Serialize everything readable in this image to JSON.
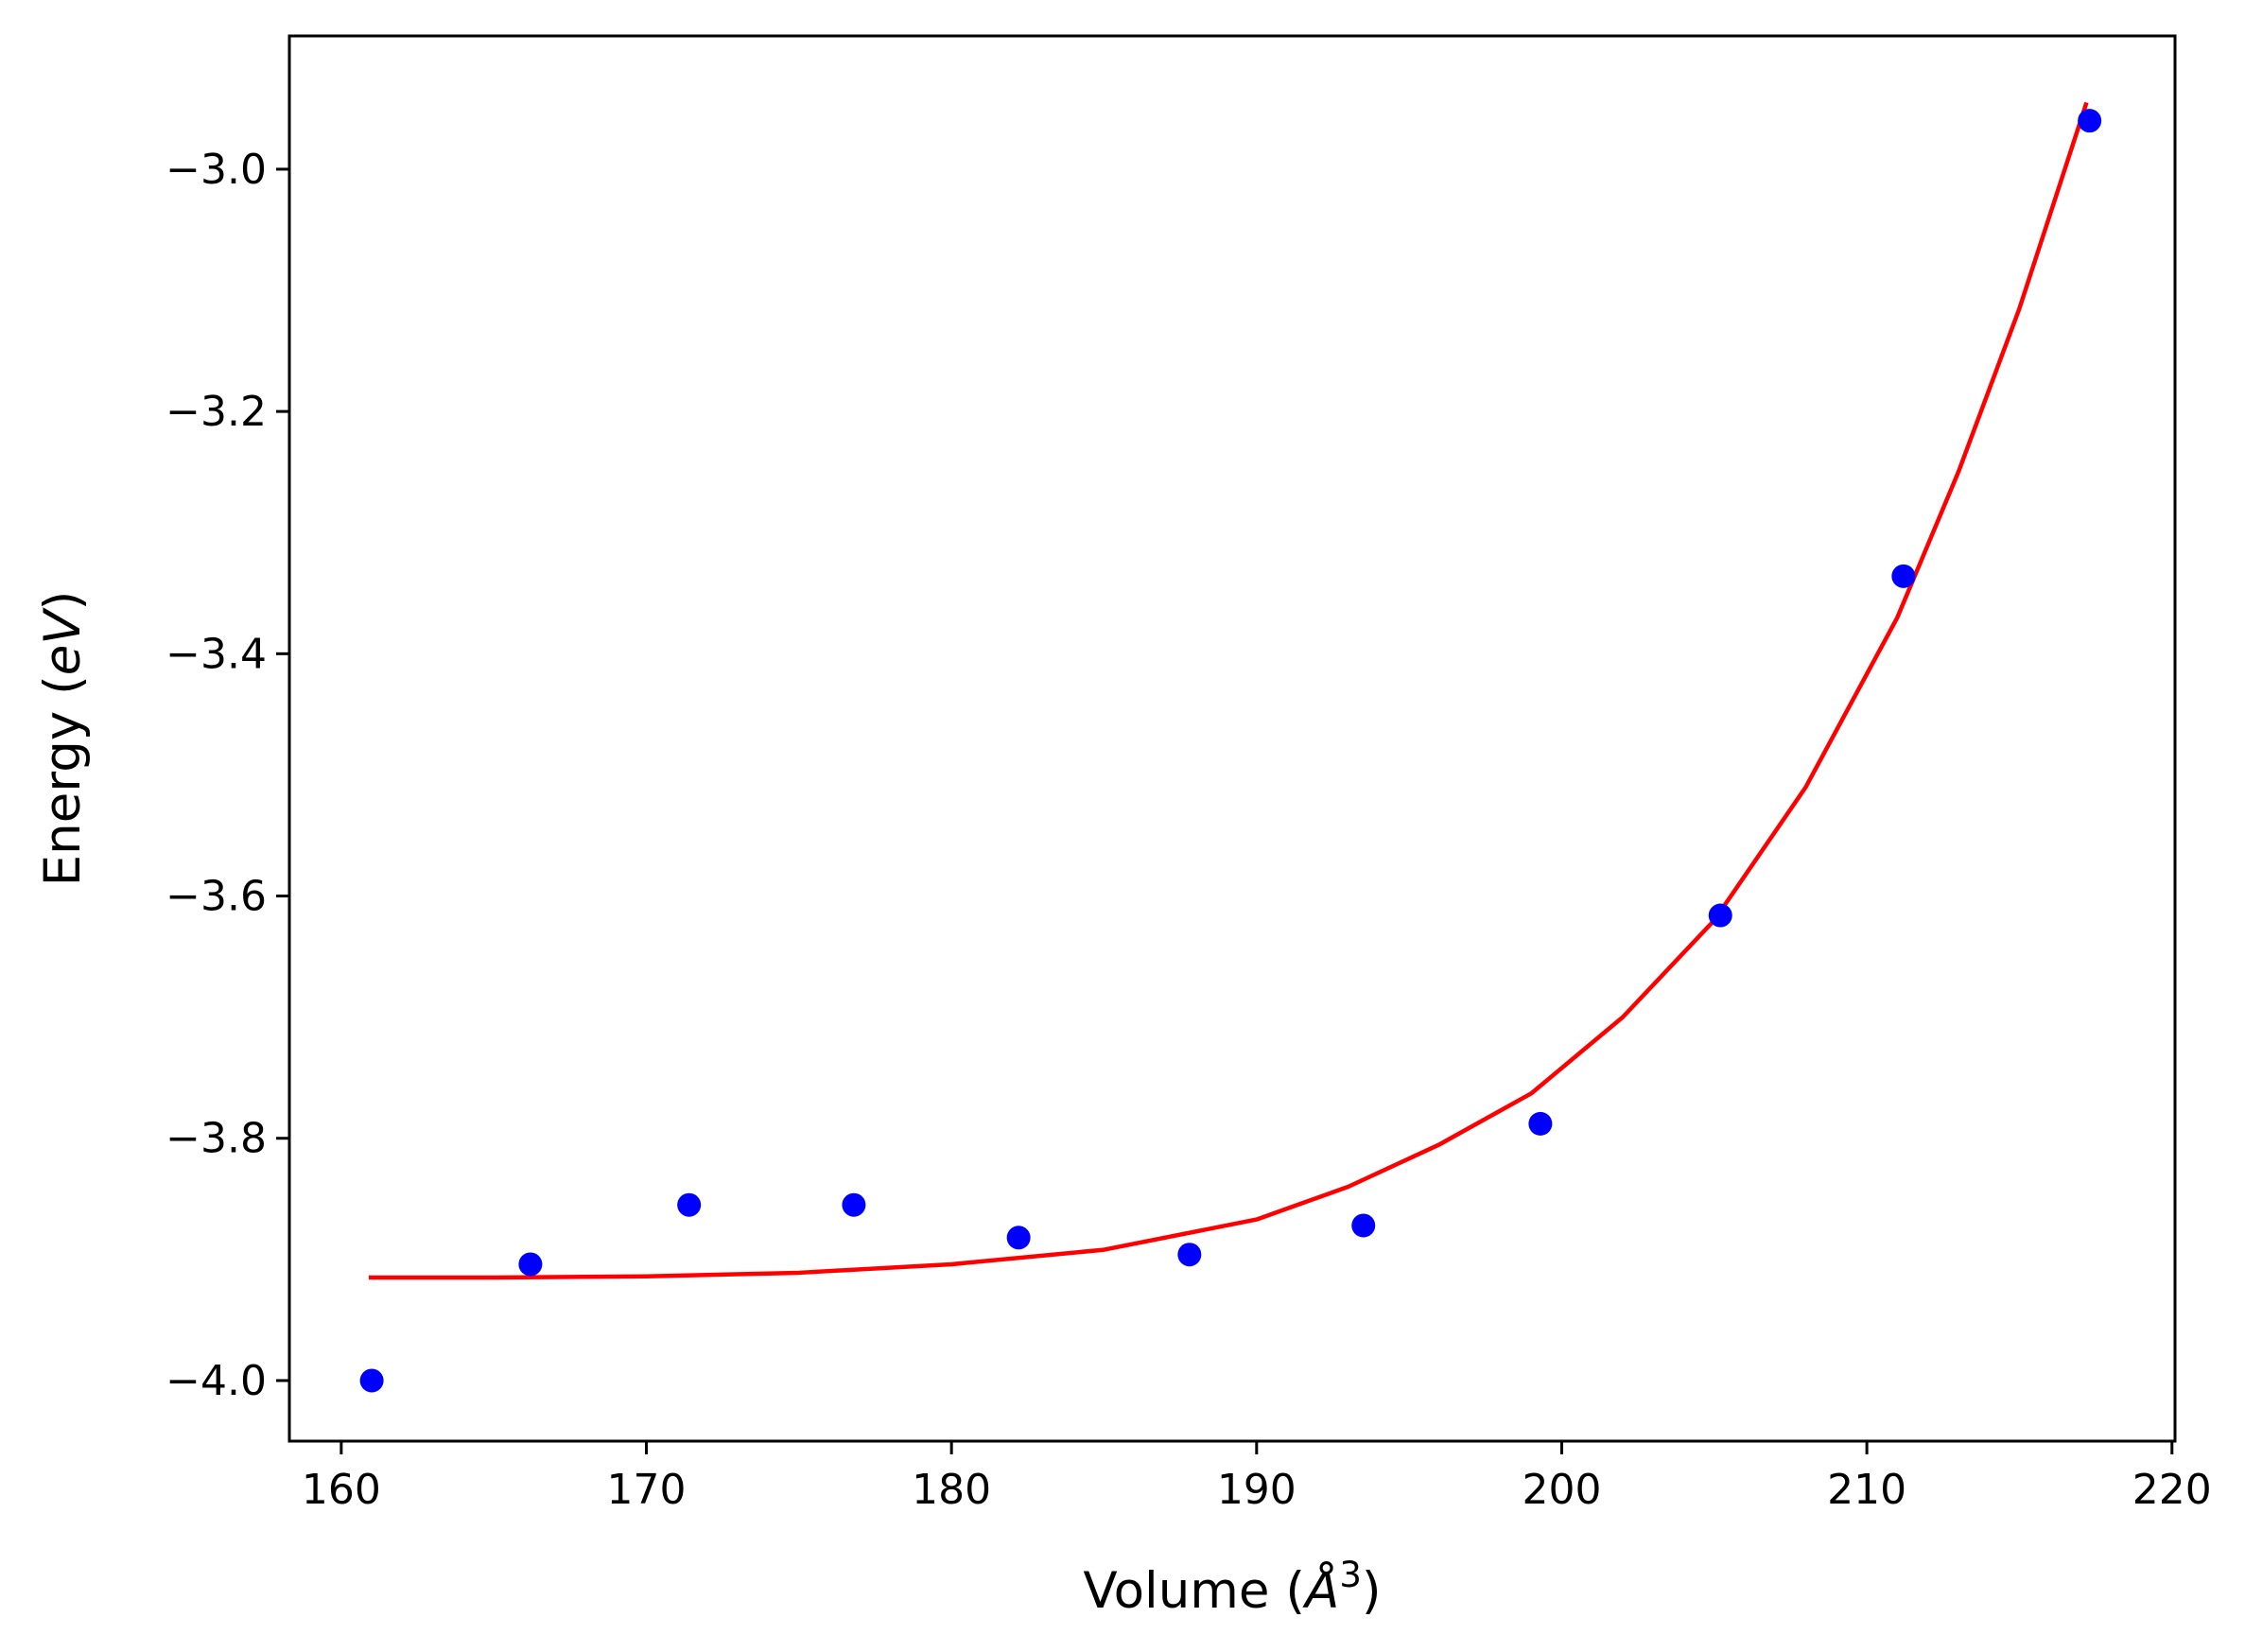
{
  "chart_data": {
    "type": "scatter",
    "title": "",
    "xlabel": {
      "prefix": "Volume (",
      "symbol": "Å",
      "superscript": "3",
      "suffix": ")"
    },
    "ylabel": {
      "prefix": "Energy (",
      "unit": "eV",
      "suffix": ")"
    },
    "xlim": [
      158.3,
      220.1
    ],
    "ylim": [
      -4.05,
      -2.89
    ],
    "xticks": [
      160,
      170,
      180,
      190,
      200,
      210,
      220
    ],
    "yticks": [
      -4.0,
      -3.8,
      -3.6,
      -3.4,
      -3.2,
      -3.0
    ],
    "xtick_labels": [
      "160",
      "170",
      "180",
      "190",
      "200",
      "210",
      "220"
    ],
    "ytick_labels": [
      "−4.0",
      "−3.8",
      "−3.6",
      "−3.4",
      "−3.2",
      "−3.0"
    ],
    "grid": false,
    "legend": "none",
    "series": [
      {
        "kind": "points",
        "color": "#0000ff",
        "x": [
          161.0,
          166.2,
          171.4,
          176.8,
          182.2,
          187.8,
          193.5,
          199.3,
          205.2,
          211.2,
          217.3
        ],
        "y": [
          -4.0,
          -3.904,
          -3.855,
          -3.855,
          -3.882,
          -3.896,
          -3.872,
          -3.788,
          -3.616,
          -3.336,
          -2.96
        ]
      },
      {
        "kind": "fit-line",
        "color": "#ff0000",
        "x": [
          160.9,
          165,
          170,
          175,
          180,
          185,
          190,
          193,
          196,
          199,
          202,
          205,
          208,
          211,
          213,
          215,
          217.2
        ],
        "y": [
          -3.915,
          -3.915,
          -3.914,
          -3.911,
          -3.904,
          -3.892,
          -3.867,
          -3.84,
          -3.805,
          -3.763,
          -3.7,
          -3.62,
          -3.51,
          -3.37,
          -3.25,
          -3.115,
          -2.945
        ]
      }
    ]
  }
}
